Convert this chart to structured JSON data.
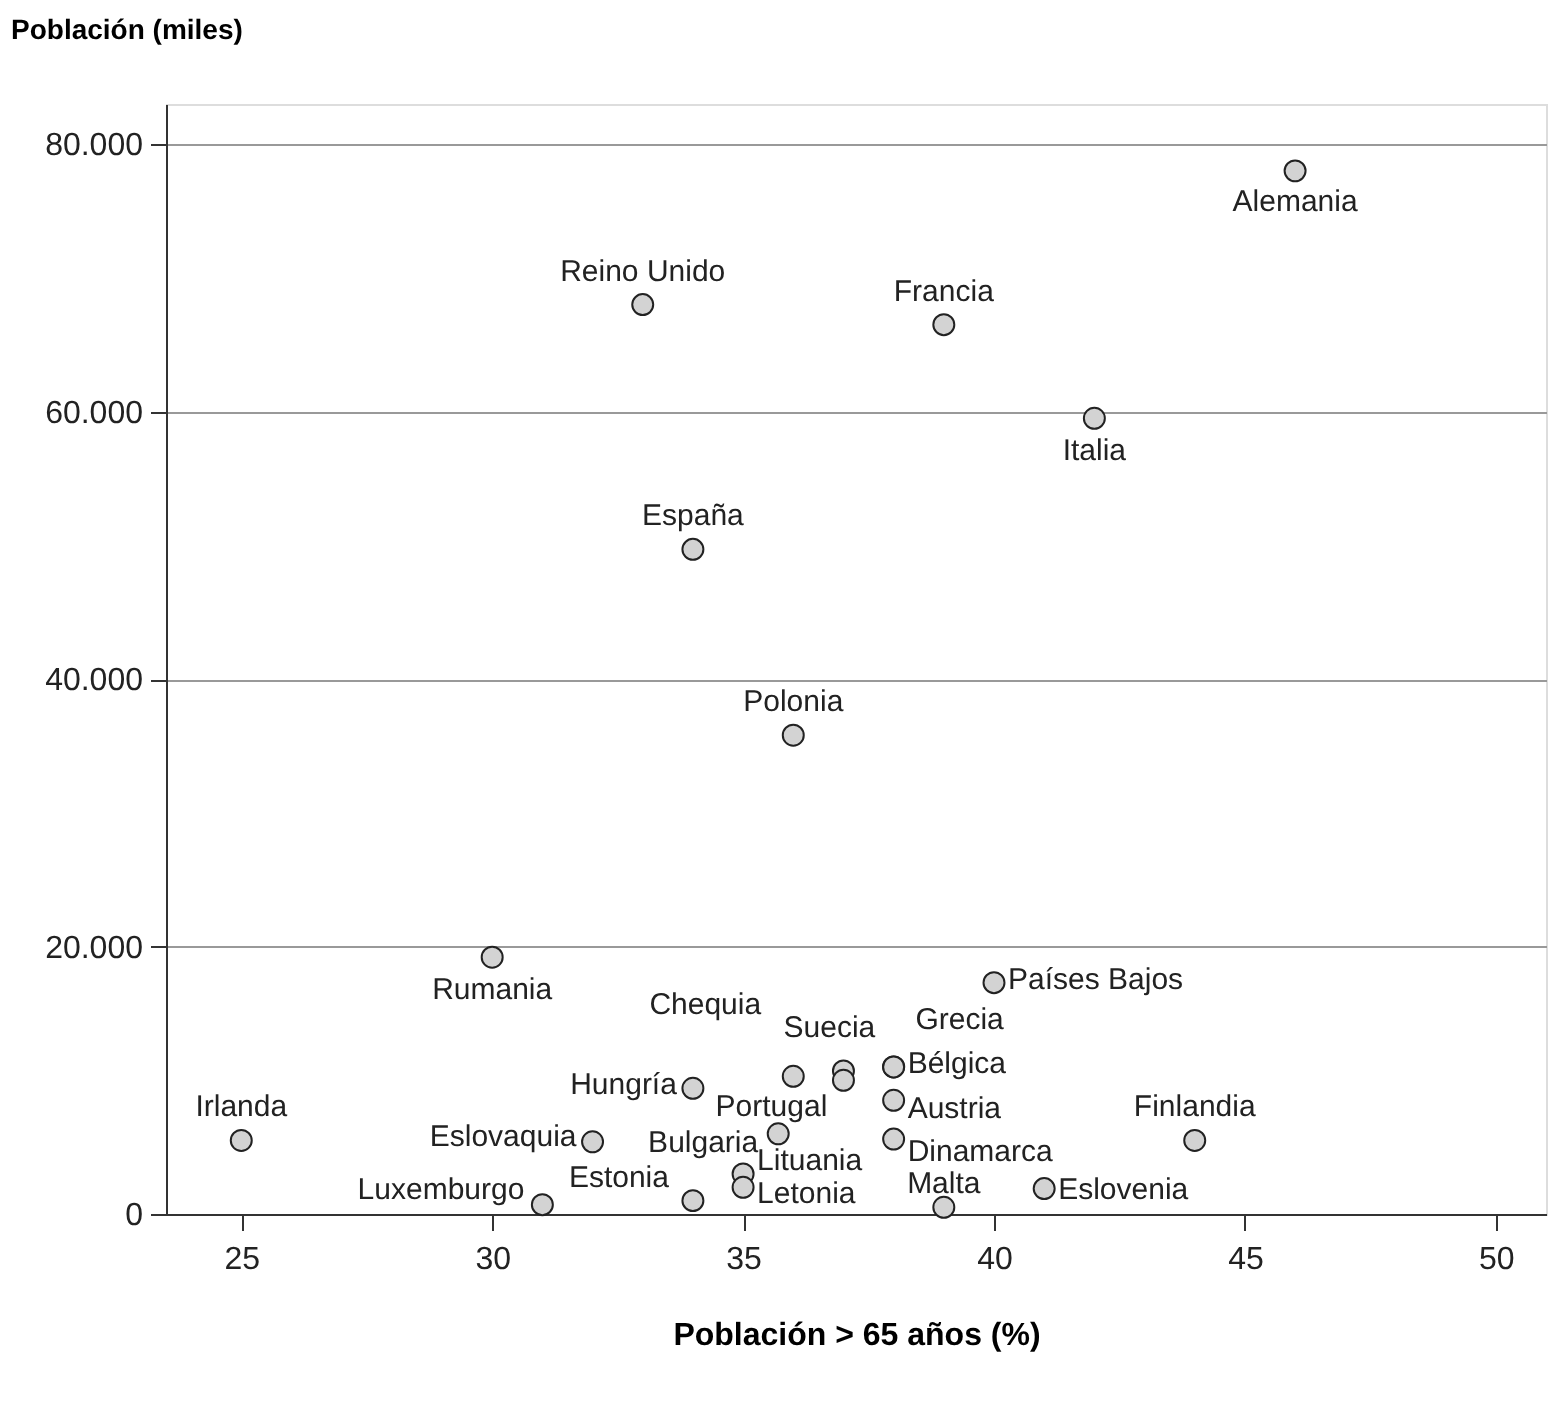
{
  "chart_data": {
    "type": "scatter",
    "ylabel": "Población (miles)",
    "xlabel": "Población > 65 años (%)",
    "series": [
      {
        "color": "#d3d3d3",
        "marker": "circle",
        "x": [
          46,
          33,
          39,
          42,
          34,
          36,
          30,
          40,
          36,
          37,
          38,
          38,
          34,
          38,
          37,
          25,
          32,
          35.7,
          38,
          44,
          35,
          35,
          31,
          34,
          39,
          41
        ],
        "values": [
          78000,
          68000,
          66500,
          59500,
          49700,
          35800,
          19200,
          17300,
          10300,
          10700,
          11000,
          11000,
          9400,
          8500,
          10000,
          5500,
          5400,
          6000,
          5600,
          5500,
          3000,
          2000,
          700,
          1000,
          500,
          1900
        ],
        "value_labels": [
          "Alemania",
          "Reino Unido",
          "Francia",
          "Italia",
          "España",
          "Polonia",
          "Rumania",
          "Países Bajos",
          "Chequia",
          "Suecia",
          "Grecia",
          "Bélgica",
          "Hungría",
          "Austria",
          "Portugal",
          "Irlanda",
          "Eslovaquia",
          "Bulgaria",
          "Dinamarca",
          "Finlandia",
          "Lituania",
          "Letonia",
          "Luxemburgo",
          "Estonia",
          "Malta",
          "Eslovenia"
        ]
      }
    ],
    "xlim": [
      23.5,
      51
    ],
    "xticks": [
      25,
      30,
      35,
      40,
      45,
      50
    ],
    "ylim": [
      0,
      83000
    ],
    "yticks": [
      {
        "value": 0,
        "label": "0"
      },
      {
        "value": 20000,
        "label": "20.000"
      },
      {
        "value": 40000,
        "label": "40.000"
      },
      {
        "value": 60000,
        "label": "60.000"
      },
      {
        "value": 80000,
        "label": "80.000"
      }
    ],
    "grid": "y"
  }
}
